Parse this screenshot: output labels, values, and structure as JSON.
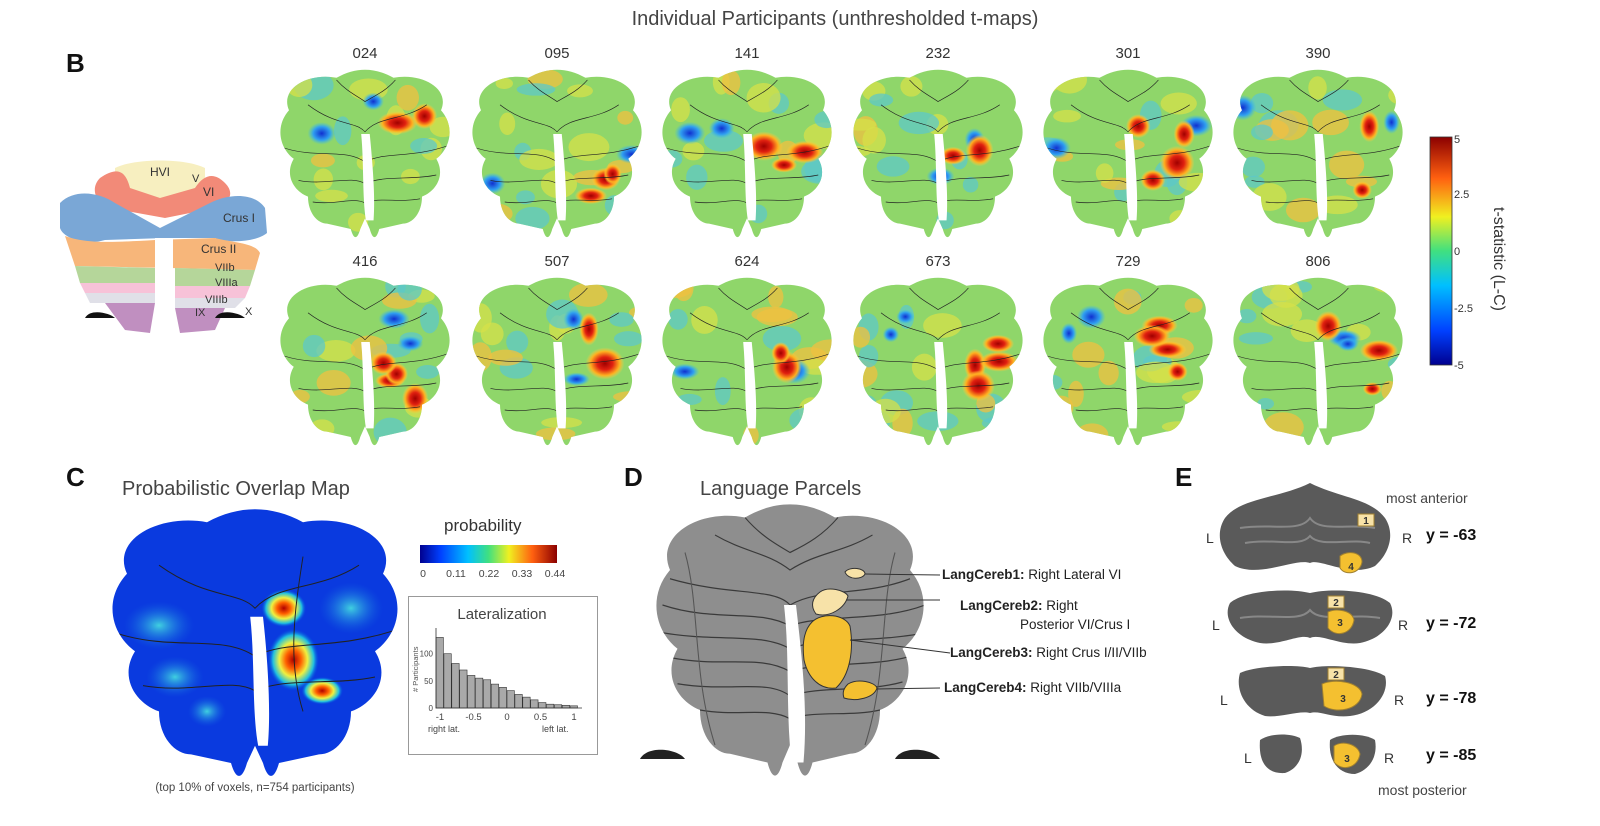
{
  "panel_b": {
    "letter": "B",
    "title": "Individual Participants (unthresholded t-maps)",
    "participants_row1": [
      "024",
      "095",
      "141",
      "232",
      "301",
      "390"
    ],
    "participants_row2": [
      "416",
      "507",
      "624",
      "673",
      "729",
      "806"
    ],
    "atlas_labels": [
      "HVI",
      "V",
      "VI",
      "Crus I",
      "Crus II",
      "VIIb",
      "VIIIa",
      "VIIIb",
      "IX",
      "X"
    ],
    "colorbar": {
      "label": "t-statistic (L-C)",
      "ticks": [
        "5",
        "2.5",
        "0",
        "-2.5",
        "-5"
      ]
    }
  },
  "panel_c": {
    "letter": "C",
    "title": "Probabilistic Overlap Map",
    "caption": "(top 10% of voxels, n=754 participants)",
    "probability_label": "probability",
    "probability_ticks": [
      "0",
      "0.11",
      "0.22",
      "0.33",
      "0.44"
    ],
    "lateralization": {
      "title": "Lateralization",
      "ylabel": "# Participants",
      "xticks": [
        "-1",
        "-0.5",
        "0",
        "0.5",
        "1"
      ],
      "left_label": "right lat.",
      "right_label": "left lat.",
      "yticks": [
        "0",
        "50",
        "100"
      ],
      "values": [
        130,
        100,
        82,
        70,
        60,
        55,
        52,
        44,
        38,
        32,
        25,
        20,
        15,
        10,
        7,
        6,
        5,
        4
      ]
    }
  },
  "panel_d": {
    "letter": "D",
    "title": "Language Parcels",
    "parcels": [
      {
        "name": "LangCereb1:",
        "desc": "Right Lateral VI"
      },
      {
        "name": "LangCereb2:",
        "desc": "Right",
        "desc2": "Posterior VI/Crus I"
      },
      {
        "name": "LangCereb3:",
        "desc": "Right Crus I/II/VIIb"
      },
      {
        "name": "LangCereb4:",
        "desc": "Right VIIb/VIIIa"
      }
    ]
  },
  "panel_e": {
    "letter": "E",
    "most_anterior": "most anterior",
    "most_posterior": "most posterior",
    "slices": [
      {
        "y": "y = -63",
        "L": "L",
        "R": "R",
        "nums": [
          "1",
          "4"
        ]
      },
      {
        "y": "y = -72",
        "L": "L",
        "R": "R",
        "nums": [
          "2",
          "3"
        ]
      },
      {
        "y": "y = -78",
        "L": "L",
        "R": "R",
        "nums": [
          "2",
          "3"
        ]
      },
      {
        "y": "y = -85",
        "L": "L",
        "R": "R",
        "nums": [
          "3"
        ]
      }
    ]
  }
}
